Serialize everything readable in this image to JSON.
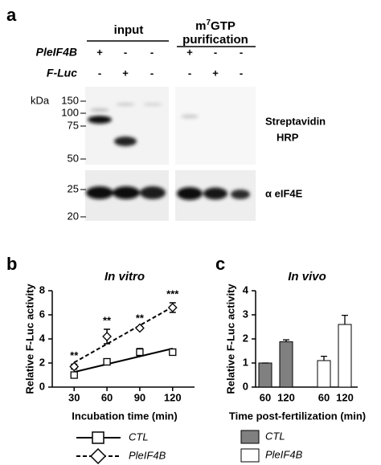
{
  "blot": {
    "panel_label": "a",
    "input_header": "input",
    "purification_header": {
      "prefix": "m",
      "superscript": "7",
      "rest": "GTP",
      "line2": "purification"
    },
    "rows": [
      {
        "label": "PleIF4B",
        "signs": [
          "+",
          "-",
          "-",
          "+",
          "-",
          "-"
        ]
      },
      {
        "label": "F-Luc",
        "signs": [
          "-",
          "+",
          "-",
          "-",
          "+",
          "-"
        ]
      }
    ],
    "kda_unit": "kDa",
    "kda_markers": [
      "150",
      "100",
      "75",
      "50",
      "25",
      "20"
    ],
    "upper_label": [
      "Streptavidin",
      "HRP"
    ],
    "lower_label": "α eIF4E"
  },
  "chart_data": [
    {
      "type": "line",
      "panel_label": "b",
      "title": "In vitro",
      "xlabel": "Incubation time (min)",
      "ylabel": "Relative F-Luc activity",
      "x": [
        30,
        60,
        90,
        120
      ],
      "xlim": [
        10,
        140
      ],
      "xticks": [
        30,
        60,
        90,
        120
      ],
      "ylim": [
        0,
        8
      ],
      "yticks": [
        0,
        2,
        4,
        6,
        8
      ],
      "trendline": true,
      "series": [
        {
          "name": "CTL",
          "color": "#000000",
          "marker": "square",
          "line_style": "solid",
          "values": [
            1.0,
            2.1,
            2.9,
            2.9
          ],
          "errors": [
            0.1,
            0.15,
            0.3,
            0.2
          ]
        },
        {
          "name": "PleIF4B",
          "color": "#000000",
          "marker": "diamond",
          "line_style": "dashed",
          "values": [
            1.7,
            4.2,
            4.9,
            6.6
          ],
          "errors": [
            0.2,
            0.6,
            0.1,
            0.4
          ]
        }
      ],
      "annotations": [
        {
          "x": 30,
          "text": "**"
        },
        {
          "x": 60,
          "text": "**"
        },
        {
          "x": 90,
          "text": "**"
        },
        {
          "x": 120,
          "text": "***"
        }
      ]
    },
    {
      "type": "bar",
      "panel_label": "c",
      "title": "In vivo",
      "xlabel": "Time post-fertilization (min)",
      "ylabel": "Relative F-Luc activity",
      "categories": [
        "60",
        "120"
      ],
      "ylim": [
        0,
        4
      ],
      "yticks": [
        0,
        1,
        2,
        3,
        4
      ],
      "series": [
        {
          "name": "CTL",
          "color": "#808080",
          "values": [
            1.0,
            1.88
          ],
          "errors": [
            0.0,
            0.08
          ]
        },
        {
          "name": "PleIF4B",
          "color": "#ffffff",
          "values": [
            1.1,
            2.6
          ],
          "errors": [
            0.18,
            0.38
          ]
        }
      ]
    }
  ]
}
